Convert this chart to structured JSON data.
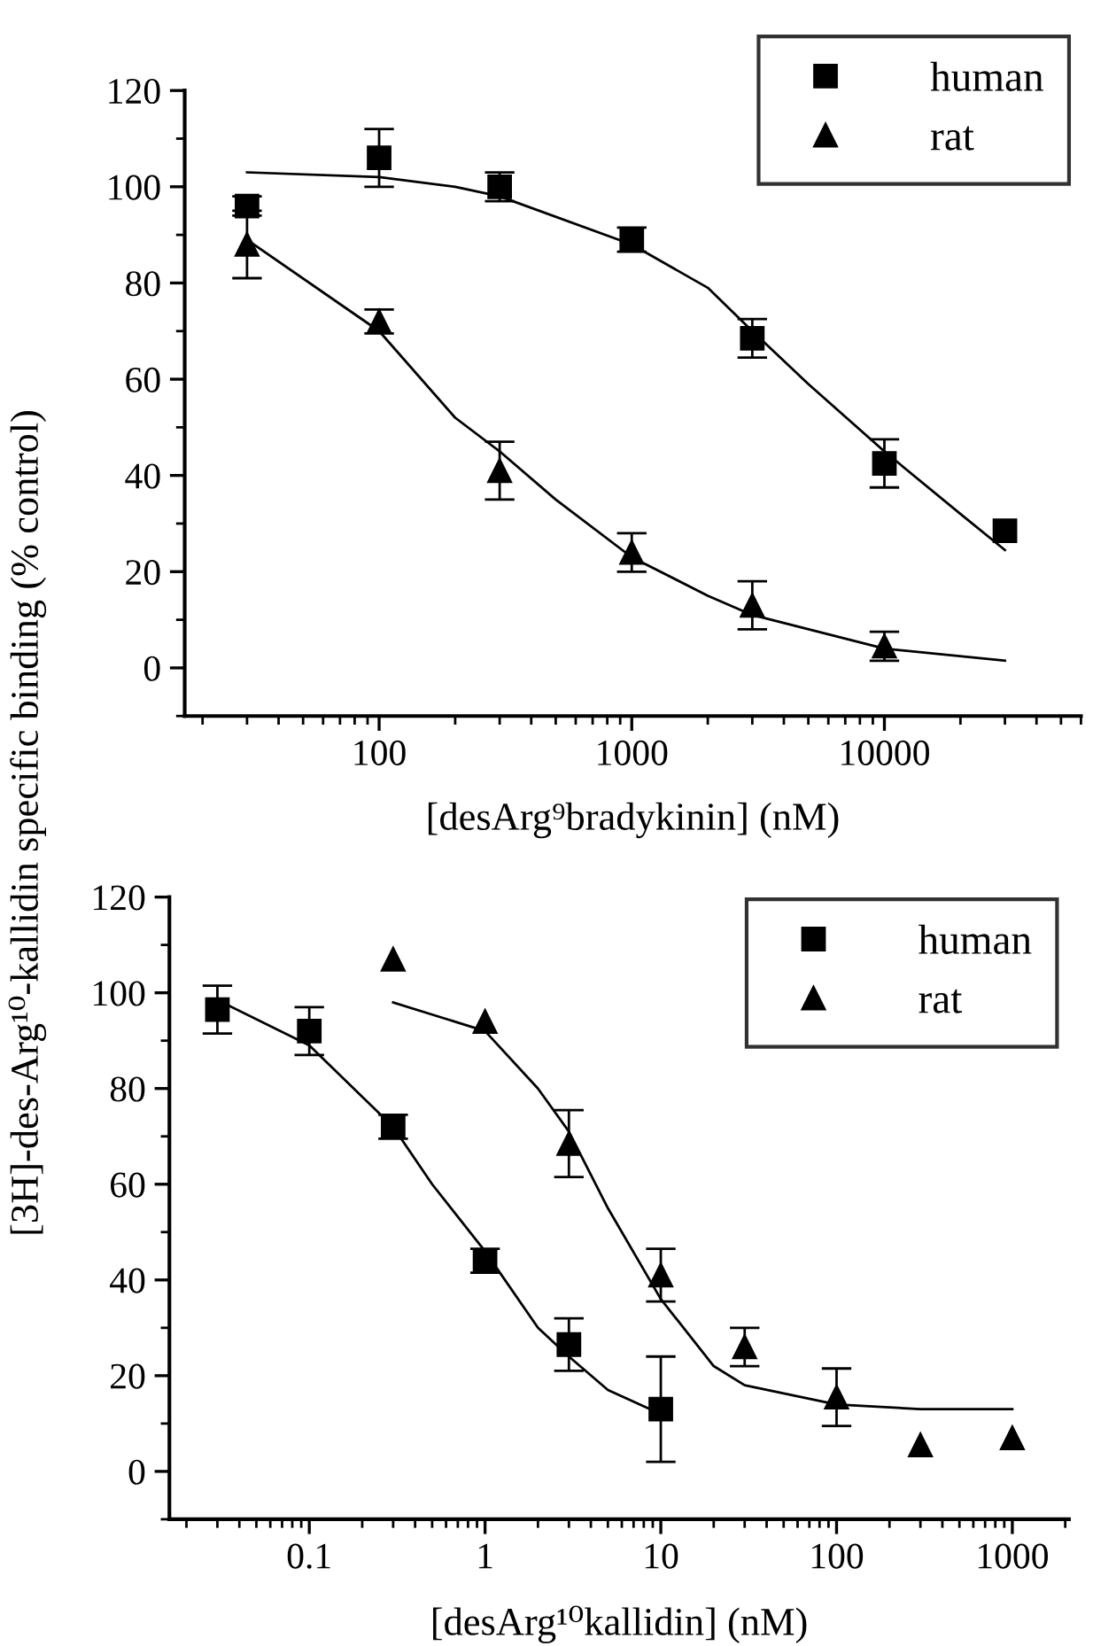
{
  "chart_data": [
    {
      "type": "scatter",
      "xlabel": "[desArg⁹bradykinin] (nM)",
      "ylabel": "[3H]-des-Arg¹⁰-kallidin specific binding (% control)",
      "log": "x",
      "xlim": [
        17,
        60000
      ],
      "xticks": [
        100,
        1000,
        10000
      ],
      "ylim": [
        -10,
        120
      ],
      "yticks": [
        0,
        20,
        40,
        60,
        80,
        100,
        120
      ],
      "legend": "top right",
      "grid": false,
      "series": [
        {
          "name": "human",
          "color": "#000000",
          "marker": "square",
          "x": [
            30,
            100,
            300,
            1000,
            3000,
            10000,
            30000
          ],
          "values": [
            96,
            106,
            100,
            89,
            68.5,
            42.5,
            28.5
          ],
          "errors": [
            2,
            6,
            3,
            2.5,
            4,
            5,
            null
          ]
        },
        {
          "name": "rat",
          "color": "#000000",
          "marker": "triangle",
          "x": [
            30,
            100,
            300,
            1000,
            3000,
            10000
          ],
          "values": [
            88,
            72,
            41,
            24,
            13,
            4.5
          ],
          "errors": [
            7,
            2.5,
            6,
            4,
            5,
            3
          ]
        },
        {
          "type": "line",
          "color": "#000000",
          "x": [
            30,
            100,
            200,
            300,
            1000,
            2000,
            3000,
            5000,
            10000,
            20000,
            30000
          ],
          "values": [
            103,
            102,
            100,
            98,
            88,
            79,
            70,
            59,
            45,
            32,
            24.5
          ]
        },
        {
          "type": "line",
          "color": "#000000",
          "x": [
            30,
            100,
            200,
            300,
            500,
            1000,
            2000,
            3000,
            10000,
            30000
          ],
          "values": [
            89,
            70,
            52,
            45,
            35,
            23,
            15,
            11,
            4,
            1.5
          ]
        }
      ]
    },
    {
      "type": "scatter",
      "xlabel": "[desArg¹⁰kallidin] (nM)",
      "log": "x",
      "xlim": [
        0.016,
        2100
      ],
      "xticks": [
        0.1,
        1,
        10,
        100,
        1000
      ],
      "ylim": [
        -10,
        120
      ],
      "yticks": [
        0,
        20,
        40,
        60,
        80,
        100,
        120
      ],
      "legend": "top right",
      "grid": false,
      "series": [
        {
          "name": "human",
          "color": "#000000",
          "marker": "square",
          "x": [
            0.03,
            0.1,
            0.3,
            1,
            3,
            10
          ],
          "values": [
            96.5,
            92,
            72,
            44,
            26.5,
            13
          ],
          "errors": [
            5,
            5,
            2.5,
            2.5,
            5.5,
            11
          ]
        },
        {
          "name": "rat",
          "color": "#000000",
          "marker": "triangle",
          "x": [
            0.3,
            1,
            3,
            10,
            30,
            100,
            300,
            1000
          ],
          "values": [
            107,
            94,
            68.5,
            41,
            26,
            15.5,
            5.5,
            7
          ],
          "errors": [
            null,
            null,
            7,
            5.5,
            4,
            6,
            null,
            null
          ]
        },
        {
          "type": "line",
          "color": "#000000",
          "x": [
            0.03,
            0.1,
            0.3,
            0.5,
            1,
            2,
            3,
            5,
            10
          ],
          "values": [
            98.5,
            89,
            72,
            60,
            46,
            30,
            24,
            17,
            12
          ]
        },
        {
          "type": "line",
          "color": "#000000",
          "x": [
            0.3,
            1,
            2,
            3,
            5,
            10,
            20,
            30,
            100,
            300,
            1000
          ],
          "values": [
            98,
            92,
            80,
            71,
            55,
            36,
            22,
            18,
            14,
            13,
            13
          ]
        }
      ]
    }
  ]
}
